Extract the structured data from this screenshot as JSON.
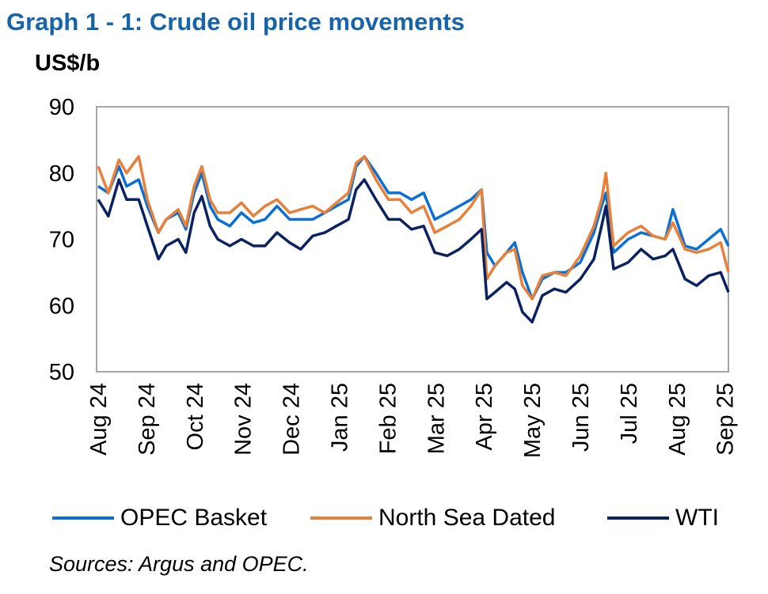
{
  "chart_data": {
    "type": "line",
    "title": "Graph 1 - 1: Crude oil price movements",
    "ylabel": "US$/b",
    "xlabel": "",
    "ylim": [
      50,
      90
    ],
    "yticks": [
      50,
      60,
      70,
      80,
      90
    ],
    "xlim": [
      0,
      13.07
    ],
    "x_unit": "months since start of Aug 24",
    "categories": [
      "Aug 24",
      "Sep 24",
      "Oct 24",
      "Nov 24",
      "Dec 24",
      "Jan 25",
      "Feb 25",
      "Mar 25",
      "Apr 25",
      "May 25",
      "Jun 25",
      "Jul 25",
      "Aug 25",
      "Sep 25"
    ],
    "x": [
      0,
      0.21,
      0.43,
      0.59,
      0.84,
      1.02,
      1.25,
      1.41,
      1.66,
      1.82,
      1.99,
      2.15,
      2.32,
      2.48,
      2.73,
      2.97,
      3.22,
      3.46,
      3.71,
      3.97,
      4.2,
      4.45,
      4.7,
      4.94,
      5.19,
      5.35,
      5.52,
      5.76,
      6.02,
      6.26,
      6.5,
      6.75,
      6.98,
      7.24,
      7.49,
      7.73,
      7.95,
      8.06,
      8.23,
      8.47,
      8.64,
      8.8,
      9,
      9.21,
      9.46,
      9.7,
      10,
      10.28,
      10.44,
      10.53,
      10.69,
      10.99,
      11.26,
      11.51,
      11.76,
      11.92,
      12.17,
      12.41,
      12.66,
      12.91,
      13.07
    ],
    "series": [
      {
        "name": "OPEC Basket",
        "color": "#0a6fd6",
        "values": [
          78,
          77,
          81,
          78,
          79,
          75,
          71,
          73,
          74,
          71.5,
          77,
          80,
          75,
          73,
          72,
          74,
          72.5,
          73,
          75,
          73,
          73,
          73,
          74,
          75,
          76,
          81,
          82.5,
          80,
          77,
          77,
          76,
          77,
          73,
          74,
          75,
          76,
          77.5,
          68,
          66,
          68,
          69.5,
          65,
          61,
          64,
          65,
          65,
          66.5,
          71,
          75,
          77,
          68,
          70,
          71,
          70.5,
          70,
          74.5,
          69,
          68.5,
          70,
          71.5,
          69
        ]
      },
      {
        "name": "North Sea Dated",
        "color": "#e8803a",
        "values": [
          81,
          77,
          82,
          80,
          82.5,
          76,
          71,
          73,
          74.5,
          72,
          78,
          81,
          76,
          74,
          74,
          75.5,
          73.5,
          75,
          76,
          74,
          74.5,
          75,
          74,
          75.5,
          77,
          81.5,
          82.5,
          79,
          76,
          76,
          74,
          75,
          71,
          72,
          73,
          75,
          77.5,
          64,
          66,
          68,
          68.5,
          63,
          61,
          64.5,
          65,
          64.5,
          67.5,
          72,
          76,
          80,
          69,
          71,
          72,
          70.5,
          70,
          72.5,
          68.5,
          68,
          68.5,
          69.5,
          65
        ]
      },
      {
        "name": "WTI",
        "color": "#0a2360",
        "values": [
          76,
          73.5,
          79,
          76,
          76,
          72,
          67,
          69,
          70,
          68,
          74,
          76.5,
          72,
          70,
          69,
          70,
          69,
          69,
          71,
          69.5,
          68.5,
          70.5,
          71,
          72,
          73,
          77.5,
          79,
          76,
          73,
          73,
          71.5,
          72,
          68,
          67.5,
          68.5,
          70,
          71.5,
          61,
          62,
          63.5,
          62.5,
          59,
          57.5,
          61.5,
          62.5,
          62,
          64,
          67,
          72,
          75,
          65.5,
          66.5,
          68.5,
          67,
          67.5,
          68.5,
          64,
          63,
          64.5,
          65,
          62
        ]
      }
    ],
    "grid": false,
    "legend": "bottom",
    "source": "Sources: Argus and OPEC."
  }
}
